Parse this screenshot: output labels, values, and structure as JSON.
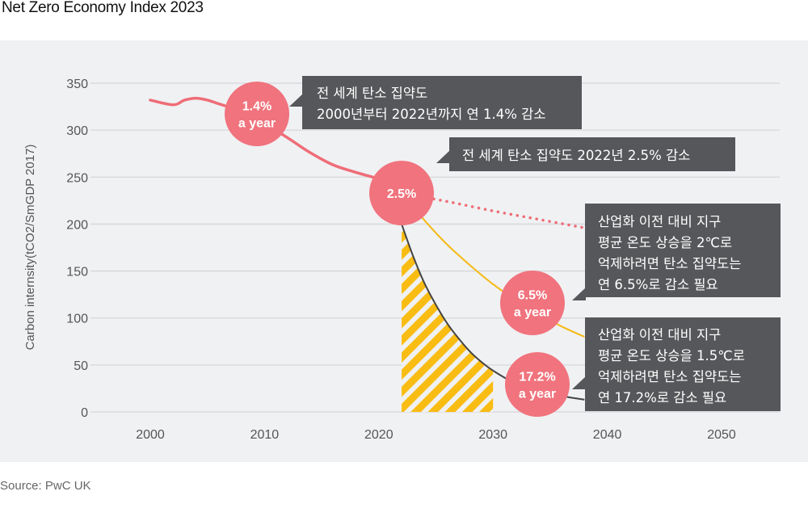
{
  "page": {
    "title": "Net Zero Economy Index 2023",
    "source": "Source:  PwC UK"
  },
  "colors": {
    "background_panel": "#f0f1f3",
    "historical_line": "#ee6d77",
    "bubble": "#f0737d",
    "path_2c": "#f5b914",
    "path_1_5c": "#444444",
    "hatch": "#f9bc12",
    "callout": "#56575a",
    "grid": "#d6d7da"
  },
  "chart_data": {
    "type": "line",
    "title": "Net Zero Economy Index 2023",
    "xlabel": "",
    "ylabel": "Carbon internsity(tCO2/SmGDP 2017)",
    "xlim": [
      2000,
      2050
    ],
    "ylim": [
      0,
      350
    ],
    "x_ticks": [
      "2000",
      "2010",
      "2020",
      "2030",
      "2040",
      "2050"
    ],
    "y_ticks": [
      "350",
      "300",
      "250",
      "200",
      "150",
      "100",
      "50",
      "0"
    ],
    "grid": true,
    "series": [
      {
        "name": "Historical global carbon intensity",
        "style": "solid",
        "x": [
          2000,
          2002,
          2003,
          2004,
          2005,
          2006,
          2008,
          2010,
          2012,
          2014,
          2016,
          2018,
          2020,
          2022
        ],
        "y": [
          332,
          327,
          332,
          334,
          332,
          328,
          320,
          307,
          292,
          276,
          263,
          255,
          248,
          238
        ]
      },
      {
        "name": "Continuation at 2.5% per year",
        "style": "dotted",
        "x": [
          2022,
          2026,
          2030,
          2034,
          2038
        ],
        "y": [
          233,
          224,
          214,
          205,
          196
        ]
      },
      {
        "name": "2°C pathway (6.5% a year)",
        "style": "solid",
        "x": [
          2022,
          2024,
          2026,
          2028,
          2030,
          2032,
          2034,
          2036,
          2038
        ],
        "y": [
          233,
          204,
          178,
          156,
          136,
          119,
          104,
          91,
          80
        ]
      },
      {
        "name": "1.5°C pathway (17.2% a year)",
        "style": "solid",
        "x": [
          2022,
          2023,
          2024,
          2025,
          2026,
          2027,
          2028,
          2029,
          2030,
          2032,
          2034,
          2036,
          2038
        ],
        "y": [
          200,
          166,
          137,
          114,
          94,
          78,
          64,
          53,
          44,
          30,
          22,
          17,
          13
        ]
      }
    ],
    "shaded_region": {
      "name": "1.5°C pathway area 2022–2030",
      "x_start": 2022,
      "x_end": 2030,
      "pattern": "diagonal-hatch"
    },
    "annotations": [
      {
        "bubble": [
          "1.4%",
          "a year"
        ],
        "at_x": 2009,
        "at_y": 311,
        "callout": [
          "전 세계 탄소 집약도",
          "2000년부터 2022년까지 연 1.4% 감소"
        ]
      },
      {
        "bubble": [
          "2.5%"
        ],
        "at_x": 2022,
        "at_y": 233,
        "callout": [
          "전 세계 탄소 집약도 2022년 2.5% 감소"
        ]
      },
      {
        "bubble": [
          "6.5%",
          "a year"
        ],
        "at_x": 2034,
        "at_y": 118,
        "callout": [
          "산업화 이전 대비 지구",
          "평균 온도 상승을 2℃로",
          "억제하려면 탄소 집약도는",
          "연 6.5%로 감소 필요"
        ]
      },
      {
        "bubble": [
          "17.2%",
          "a year"
        ],
        "at_x": 2034,
        "at_y": 29,
        "callout": [
          "산업화 이전 대비 지구",
          "평균 온도 상승을 1.5℃로",
          "억제하려면 탄소 집약도는",
          "연 17.2%로 감소 필요"
        ]
      }
    ]
  }
}
